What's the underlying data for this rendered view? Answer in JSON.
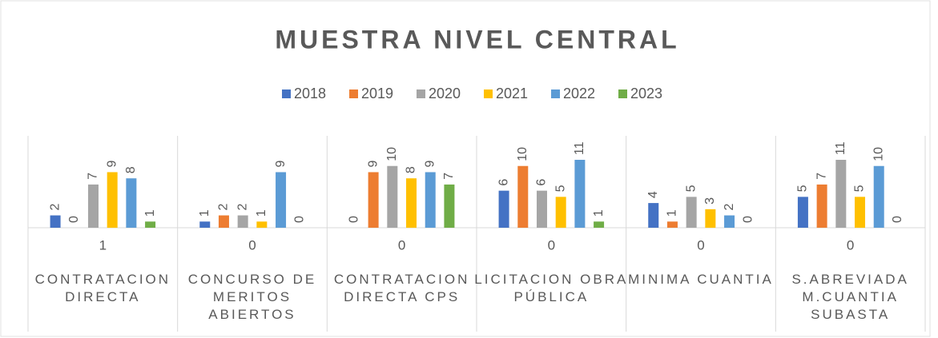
{
  "chart_data": {
    "type": "bar",
    "title": "MUESTRA NIVEL CENTRAL",
    "categories": [
      "CONTRATACION DIRECTA",
      "CONCURSO DE MERITOS ABIERTOS",
      "CONTRATACION DIRECTA CPS",
      "LICITACION OBRA PÚBLICA",
      "MINIMA CUANTIA",
      "S.ABREVIADA M.CUANTIA SUBASTA"
    ],
    "category_sublabels": [
      "1",
      "0",
      "0",
      "0",
      "0",
      "0"
    ],
    "series": [
      {
        "name": "2018",
        "color": "#4472c4",
        "values": [
          2,
          1,
          0,
          6,
          4,
          5
        ]
      },
      {
        "name": "2019",
        "color": "#ed7d31",
        "values": [
          0,
          2,
          9,
          10,
          1,
          7
        ]
      },
      {
        "name": "2020",
        "color": "#a5a5a5",
        "values": [
          7,
          2,
          10,
          6,
          5,
          11
        ]
      },
      {
        "name": "2021",
        "color": "#ffc000",
        "values": [
          9,
          1,
          8,
          5,
          3,
          5
        ]
      },
      {
        "name": "2022",
        "color": "#5b9bd5",
        "values": [
          8,
          9,
          9,
          11,
          2,
          10
        ]
      },
      {
        "name": "2023",
        "color": "#70ad47",
        "values": [
          1,
          0,
          7,
          1,
          0,
          0
        ]
      }
    ],
    "ylim": [
      0,
      11
    ],
    "legend": "top"
  }
}
